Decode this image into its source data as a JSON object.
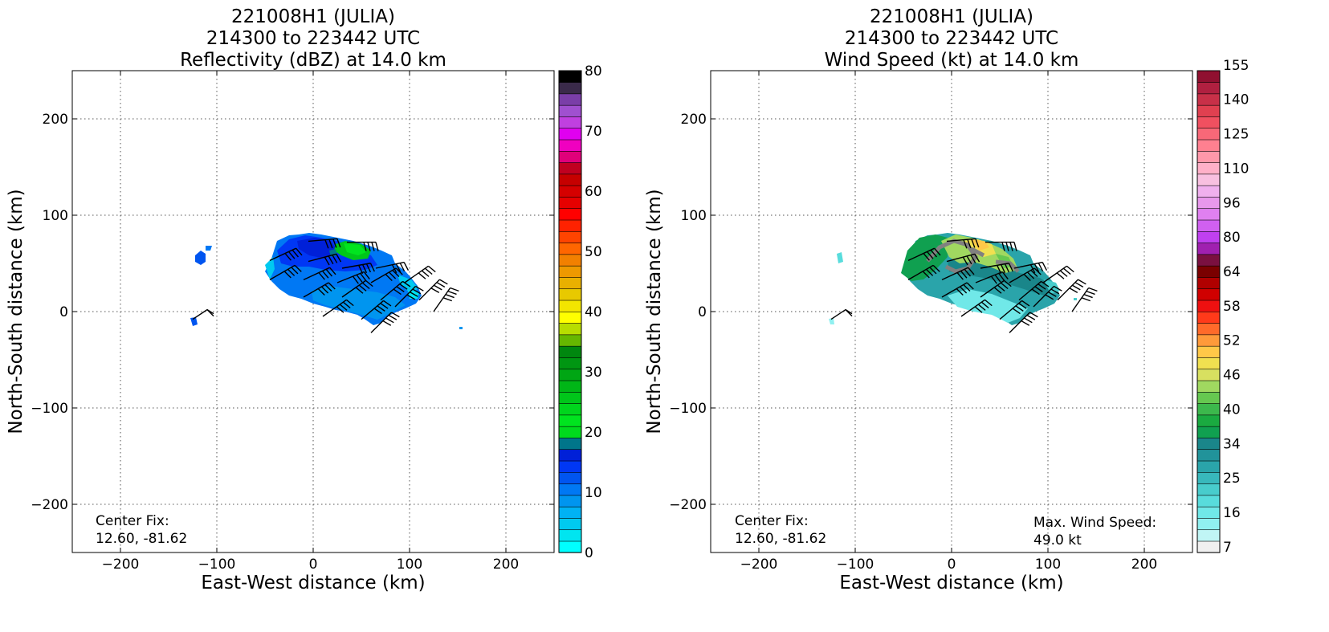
{
  "colors": {
    "reflectivity": [
      "#00ffff",
      "#00e5f0",
      "#00caf0",
      "#00b2f4",
      "#0095ef",
      "#0078f4",
      "#0055f0",
      "#0037f4",
      "#0020d8",
      "#00758a",
      "#00da1e",
      "#00e41f",
      "#00d51d",
      "#00c61a",
      "#00b617",
      "#00a614",
      "#009612",
      "#00870f",
      "#66b700",
      "#b7dd00",
      "#ffff00",
      "#f2e500",
      "#e8c900",
      "#e9b000",
      "#ee9900",
      "#f28000",
      "#ff6600",
      "#ff4400",
      "#ff2200",
      "#ff0000",
      "#e60000",
      "#d50000",
      "#c60000",
      "#c00020",
      "#e0007a",
      "#f000c0",
      "#e000f0",
      "#c040e0",
      "#a050d0",
      "#7a3ea8",
      "#3a2a4a",
      "#000000"
    ],
    "wind": [
      "#f0f0f0",
      "#c0f5f5",
      "#90f0f0",
      "#70e8e8",
      "#58dcdc",
      "#48cccc",
      "#38b8bc",
      "#2aa4aa",
      "#21939a",
      "#1a868a",
      "#10a050",
      "#1aaa40",
      "#3cb84c",
      "#66c850",
      "#a0d860",
      "#d8e060",
      "#f0e050",
      "#ffc848",
      "#ff9a3a",
      "#ff6a2a",
      "#ff3a1a",
      "#ee1010",
      "#d00000",
      "#b00000",
      "#7a0000",
      "#7a1040",
      "#a020b0",
      "#c040f0",
      "#d060f0",
      "#e080f0",
      "#e898ec",
      "#f0b0ee",
      "#f8c0e0",
      "#ffb0c8",
      "#ff98aa",
      "#ff8090",
      "#f86878",
      "#f05060",
      "#e04050",
      "#c83048",
      "#b02040",
      "#901030"
    ]
  },
  "panels": [
    {
      "id": "reflectivity",
      "title": [
        "221008H1 (JULIA)",
        "214300 to 223442 UTC",
        "Reflectivity (dBZ) at 14.0 km"
      ],
      "xlabel": "East-West distance (km)",
      "ylabel": "North-South distance (km)",
      "center_fix": [
        "Center Fix:",
        "12.60, -81.62"
      ],
      "colorbar_ticks": [
        "0",
        "10",
        "20",
        "30",
        "40",
        "50",
        "60",
        "70",
        "80"
      ]
    },
    {
      "id": "wind",
      "title": [
        "221008H1 (JULIA)",
        "214300 to 223442 UTC",
        "Wind Speed (kt) at 14.0 km"
      ],
      "xlabel": "East-West distance (km)",
      "ylabel": "North-South distance (km)",
      "center_fix": [
        "Center Fix:",
        "12.60, -81.62"
      ],
      "max_wind": [
        "Max. Wind Speed:",
        "49.0 kt"
      ],
      "colorbar_ticks": [
        "7",
        "16",
        "25",
        "34",
        "40",
        "46",
        "52",
        "58",
        "64",
        "80",
        "96",
        "110",
        "125",
        "140",
        "155"
      ]
    }
  ],
  "chart_data": [
    {
      "type": "heatmap",
      "title": "221008H1 (JULIA) 214300 to 223442 UTC Reflectivity (dBZ) at 14.0 km",
      "xlabel": "East-West distance (km)",
      "ylabel": "North-South distance (km)",
      "xlim": [
        -250,
        250
      ],
      "ylim": [
        -250,
        250
      ],
      "xticks": [
        -200,
        -100,
        0,
        100,
        200
      ],
      "yticks": [
        -200,
        -100,
        0,
        100,
        200
      ],
      "grid": true,
      "colorbar": {
        "label_values": [
          0,
          10,
          20,
          30,
          40,
          50,
          60,
          70,
          80
        ],
        "min": 0,
        "max": 80
      },
      "regions": [
        {
          "x": [
            -50,
            115
          ],
          "y": [
            -15,
            80
          ],
          "value_range_dbz": [
            2,
            14
          ],
          "note": "main echo"
        },
        {
          "x": [
            20,
            60
          ],
          "y": [
            55,
            75
          ],
          "value_range_dbz": [
            20,
            26
          ],
          "note": "embedded stronger echo"
        },
        {
          "x": [
            -122,
            -112
          ],
          "y": [
            48,
            68
          ],
          "value_range_dbz": [
            10,
            13
          ]
        },
        {
          "x": [
            -127,
            -120
          ],
          "y": [
            -15,
            -5
          ],
          "value_range_dbz": [
            10,
            13
          ]
        },
        {
          "x": [
            150,
            155
          ],
          "y": [
            -18,
            -14
          ],
          "value_range_dbz": [
            5,
            8
          ]
        }
      ]
    },
    {
      "type": "heatmap",
      "title": "221008H1 (JULIA) 214300 to 223442 UTC Wind Speed (kt) at 14.0 km",
      "xlabel": "East-West distance (km)",
      "ylabel": "North-South distance (km)",
      "xlim": [
        -250,
        250
      ],
      "ylim": [
        -250,
        250
      ],
      "xticks": [
        -200,
        -100,
        0,
        100,
        200
      ],
      "yticks": [
        -200,
        -100,
        0,
        100,
        200
      ],
      "grid": true,
      "colorbar": {
        "label_values": [
          7,
          16,
          25,
          34,
          40,
          46,
          52,
          58,
          64,
          80,
          96,
          110,
          125,
          140,
          155
        ],
        "min": 7,
        "max": 155
      },
      "max_wind_kt": 49.0,
      "regions": [
        {
          "x": [
            -50,
            130
          ],
          "y": [
            -15,
            80
          ],
          "value_range_kt": [
            14,
            30
          ]
        },
        {
          "x": [
            -10,
            70
          ],
          "y": [
            40,
            78
          ],
          "value_range_kt": [
            34,
            49
          ]
        },
        {
          "x": [
            -117,
            -112
          ],
          "y": [
            50,
            58
          ],
          "value_range_kt": [
            14,
            18
          ]
        }
      ]
    }
  ],
  "barbs": [
    {
      "x": -5,
      "y": 73,
      "a": 5
    },
    {
      "x": 35,
      "y": 72,
      "a": 0
    },
    {
      "x": -45,
      "y": 53,
      "a": 25
    },
    {
      "x": -5,
      "y": 52,
      "a": 15
    },
    {
      "x": 30,
      "y": 45,
      "a": 10
    },
    {
      "x": 65,
      "y": 45,
      "a": 12
    },
    {
      "x": -45,
      "y": 33,
      "a": 30
    },
    {
      "x": -10,
      "y": 33,
      "a": 25
    },
    {
      "x": 25,
      "y": 30,
      "a": 22
    },
    {
      "x": 60,
      "y": 30,
      "a": 30
    },
    {
      "x": 95,
      "y": 30,
      "a": 35
    },
    {
      "x": -10,
      "y": 15,
      "a": 30
    },
    {
      "x": 30,
      "y": 15,
      "a": 35
    },
    {
      "x": 70,
      "y": 12,
      "a": 40
    },
    {
      "x": 110,
      "y": 12,
      "a": 45
    },
    {
      "x": 10,
      "y": -5,
      "a": 35
    },
    {
      "x": 50,
      "y": -8,
      "a": 40
    },
    {
      "x": 85,
      "y": 5,
      "a": 45
    },
    {
      "x": 125,
      "y": 0,
      "a": 55
    },
    {
      "x": 60,
      "y": -22,
      "a": 45
    }
  ],
  "isolated_barb": {
    "x": -125,
    "y": -8,
    "a": -40
  }
}
